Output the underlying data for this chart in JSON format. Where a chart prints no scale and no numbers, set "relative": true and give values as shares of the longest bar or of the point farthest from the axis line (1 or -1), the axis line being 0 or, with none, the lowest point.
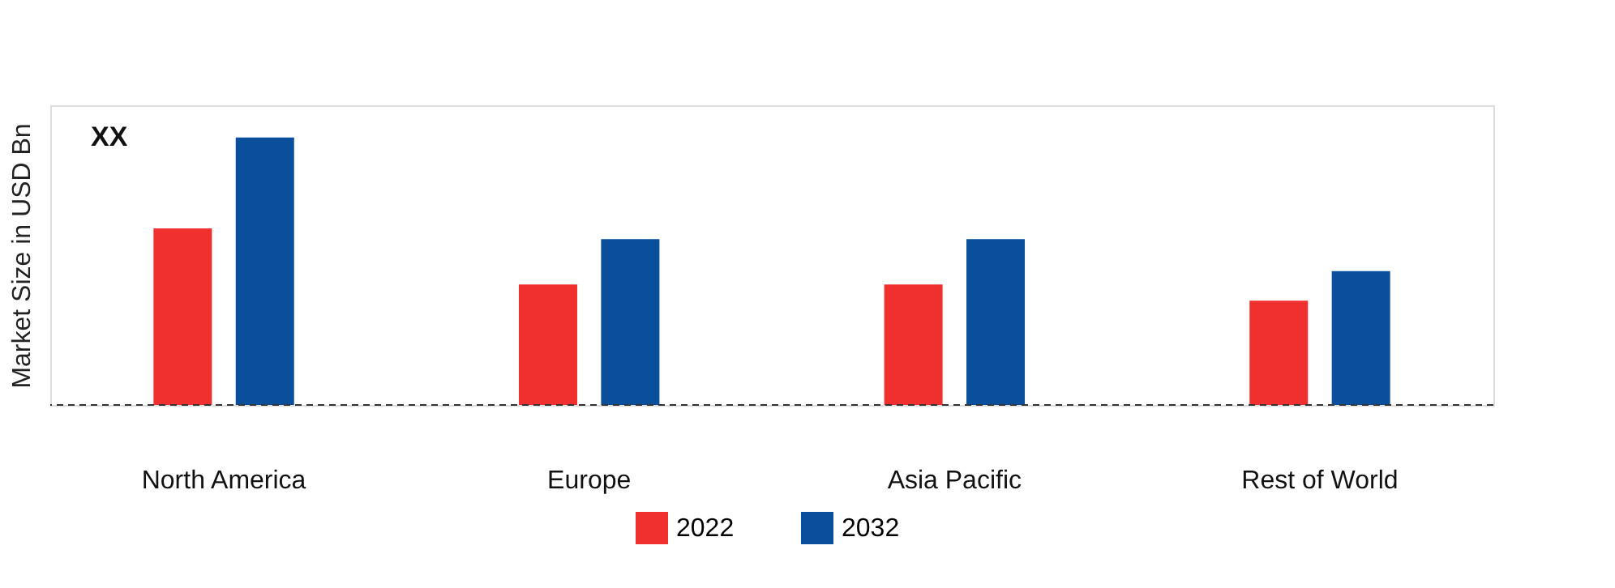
{
  "chart_data": {
    "type": "bar",
    "relative": true,
    "ylabel": "Market Size in USD Bn",
    "categories": [
      "North America",
      "Europe",
      "Asia Pacific",
      "Rest of World"
    ],
    "series": [
      {
        "name": "2022",
        "color": "#f0302f",
        "values": [
          0.66,
          0.45,
          0.45,
          0.39
        ]
      },
      {
        "name": "2032",
        "color": "#0a4f9c",
        "values": [
          1,
          0.62,
          0.62,
          0.5
        ]
      }
    ],
    "annotations": [
      "XX"
    ],
    "ref_lines": [
      {
        "axis": "y",
        "value": 0,
        "line_style": "dashed",
        "color": "#333333"
      }
    ],
    "legend": "bottom",
    "grid": false
  }
}
